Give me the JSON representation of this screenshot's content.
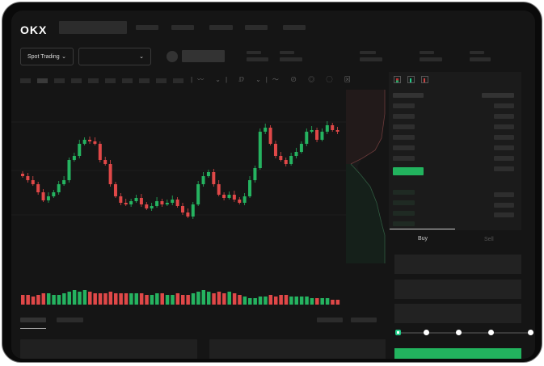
{
  "header": {
    "logo": "OKX"
  },
  "toolbar": {
    "market_type": "Spot Trading",
    "pair_select": ""
  },
  "colors": {
    "up": "#25b360",
    "down": "#e04848",
    "background": "#151515"
  },
  "order_form": {
    "tabs": [
      {
        "label": "Buy",
        "active": true
      },
      {
        "label": "Sell",
        "active": false
      }
    ],
    "leverage_slider": {
      "value_percent": 0,
      "stops": [
        0,
        25,
        50,
        75,
        100
      ]
    }
  },
  "chart_data": {
    "type": "candlestick",
    "closes": [
      95,
      90,
      85,
      75,
      65,
      70,
      75,
      85,
      90,
      115,
      120,
      135,
      140,
      138,
      135,
      115,
      110,
      85,
      70,
      62,
      60,
      64,
      68,
      60,
      55,
      58,
      64,
      60,
      62,
      66,
      58,
      50,
      45,
      60,
      85,
      95,
      100,
      85,
      72,
      68,
      72,
      66,
      62,
      70,
      90,
      105,
      150,
      155,
      135,
      120,
      115,
      110,
      120,
      125,
      135,
      150,
      152,
      140,
      150,
      158,
      152,
      150
    ],
    "volumes": [
      6,
      6,
      5,
      6,
      7,
      7,
      6,
      6,
      7,
      8,
      9,
      8,
      9,
      8,
      7,
      7,
      7,
      8,
      7,
      7,
      7,
      7,
      7,
      7,
      6,
      6,
      7,
      7,
      6,
      6,
      7,
      6,
      6,
      7,
      8,
      9,
      8,
      7,
      8,
      7,
      8,
      7,
      6,
      5,
      4,
      4,
      5,
      5,
      6,
      5,
      6,
      6,
      5,
      5,
      5,
      5,
      4,
      4,
      4,
      4,
      3,
      3
    ]
  }
}
